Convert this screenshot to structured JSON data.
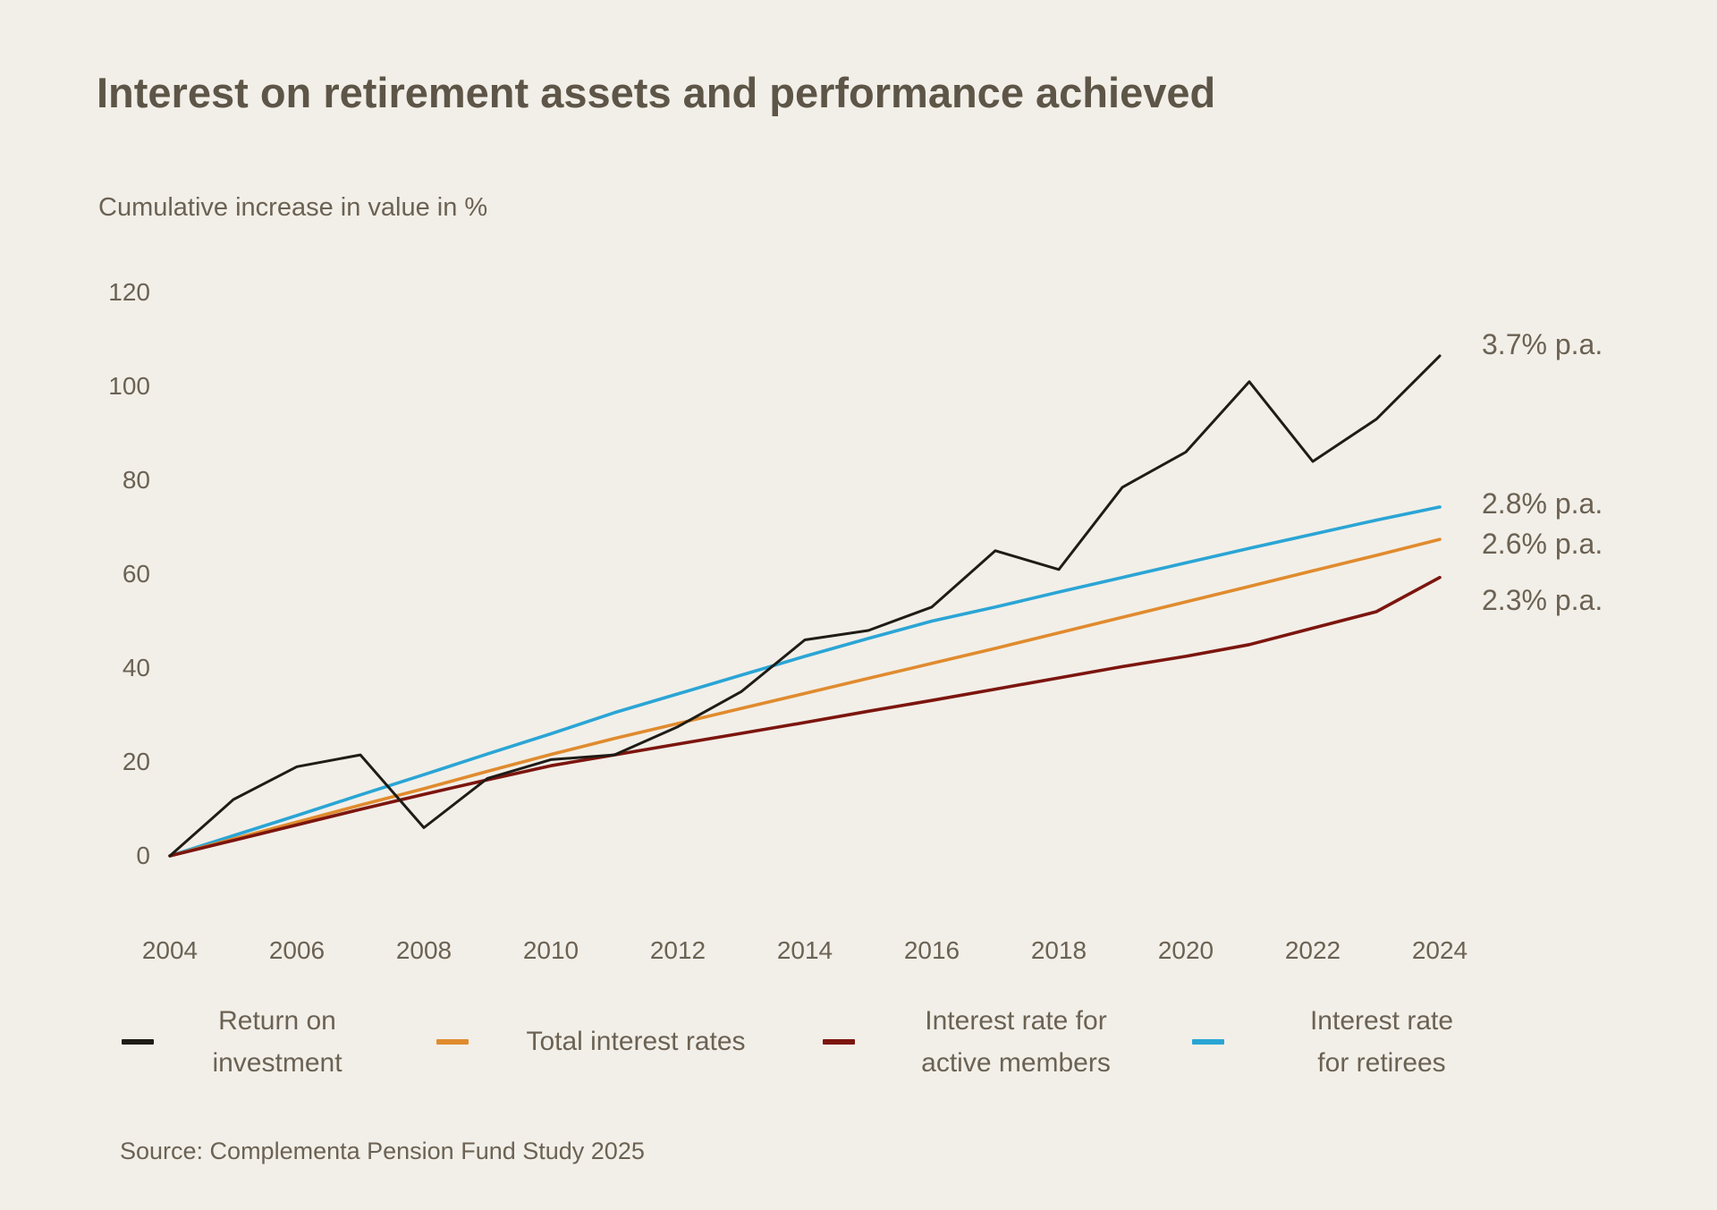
{
  "title": "Interest on retirement assets and performance achieved",
  "subtitle": "Cumulative increase in value in %",
  "source": "Source: Complementa Pension Fund Study 2025",
  "colors": {
    "background": "#f2efe8",
    "title_text": "#5d5547",
    "label_text": "#6b6254",
    "return_on_investment": "#1f1b16",
    "total_interest_rates": "#e08b2e",
    "active_members": "#7c150e",
    "retirees": "#2aa5d5"
  },
  "chart_data": {
    "type": "line",
    "x": [
      2004,
      2005,
      2006,
      2007,
      2008,
      2009,
      2010,
      2011,
      2012,
      2013,
      2014,
      2015,
      2016,
      2017,
      2018,
      2019,
      2020,
      2021,
      2022,
      2023,
      2024
    ],
    "x_tick_labels": [
      "2004",
      "2006",
      "2008",
      "2010",
      "2012",
      "2014",
      "2016",
      "2018",
      "2020",
      "2022",
      "2024"
    ],
    "y_ticks": [
      0,
      20,
      40,
      60,
      80,
      100,
      120
    ],
    "ylim": [
      0,
      120
    ],
    "grid": false,
    "legend_position": "bottom",
    "series": [
      {
        "key": "return_on_investment",
        "name": "Return on investment",
        "color": "#1f1b16",
        "annotation": "3.7% p.a.",
        "values": [
          0,
          12,
          19,
          21.5,
          6,
          16.5,
          20.5,
          21.5,
          27.5,
          35,
          46,
          48,
          53,
          65,
          61,
          78.5,
          86,
          101,
          84,
          93,
          106.5
        ]
      },
      {
        "key": "total_interest_rates",
        "name": "Total interest rates",
        "color": "#e08b2e",
        "annotation": "2.6% p.a.",
        "values": [
          0,
          3.6,
          7.2,
          10.8,
          14.3,
          18,
          21.6,
          25,
          28.2,
          31.4,
          34.6,
          37.8,
          41,
          44.2,
          47.5,
          50.8,
          54.1,
          57.4,
          60.7,
          64,
          67.4
        ]
      },
      {
        "key": "active_members",
        "name": "Interest rate for active members",
        "color": "#7c150e",
        "annotation": "2.3% p.a.",
        "values": [
          0,
          3.3,
          6.6,
          9.9,
          13.1,
          16.2,
          19.2,
          21.5,
          23.8,
          26.1,
          28.4,
          30.8,
          33.1,
          35.5,
          37.9,
          40.3,
          42.5,
          45,
          48.5,
          52,
          59.3
        ]
      },
      {
        "key": "retirees",
        "name": "Interest rate for retirees",
        "color": "#2aa5d5",
        "annotation": "2.8% p.a.",
        "values": [
          0,
          4.3,
          8.6,
          13,
          17.3,
          21.7,
          26,
          30.5,
          34.5,
          38.5,
          42.5,
          46.3,
          50,
          53,
          56.2,
          59.3,
          62.4,
          65.5,
          68.5,
          71.5,
          74.3
        ]
      }
    ]
  },
  "legend": [
    {
      "key": "return_on_investment",
      "lines": [
        "Return on",
        "investment"
      ]
    },
    {
      "key": "total_interest_rates",
      "lines": [
        "Total interest rates"
      ]
    },
    {
      "key": "active_members",
      "lines": [
        "Interest rate for",
        "active members"
      ]
    },
    {
      "key": "retirees",
      "lines": [
        "Interest rate",
        "for retirees"
      ]
    }
  ]
}
